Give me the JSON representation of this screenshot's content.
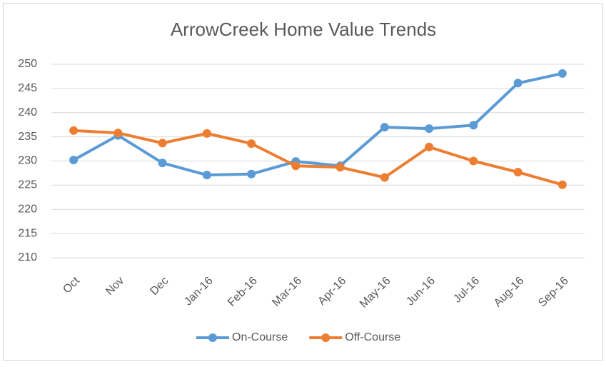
{
  "chart_data": {
    "type": "line",
    "title": "ArrowCreek Home Value Trends",
    "categories": [
      "Oct",
      "Nov",
      "Dec",
      "Jan-16",
      "Feb-16",
      "Mar-16",
      "Apr-16",
      "May-16",
      "Jun-16",
      "Jul-16",
      "Aug-16",
      "Sep-16"
    ],
    "series": [
      {
        "name": "On-Course",
        "color": "#5b9bd5",
        "values": [
          230.2,
          235.3,
          229.6,
          227.1,
          227.3,
          229.9,
          229.0,
          237.0,
          236.7,
          237.4,
          246.1,
          248.1
        ]
      },
      {
        "name": "Off-Course",
        "color": "#ed7d31",
        "values": [
          236.3,
          235.8,
          233.7,
          235.7,
          233.6,
          229.0,
          228.7,
          226.6,
          232.9,
          230.0,
          227.7,
          225.1
        ]
      }
    ],
    "ylim": [
      210,
      250
    ],
    "yticks": [
      210,
      215,
      220,
      225,
      230,
      235,
      240,
      245,
      250
    ],
    "grid": true,
    "legend": "bottom"
  }
}
